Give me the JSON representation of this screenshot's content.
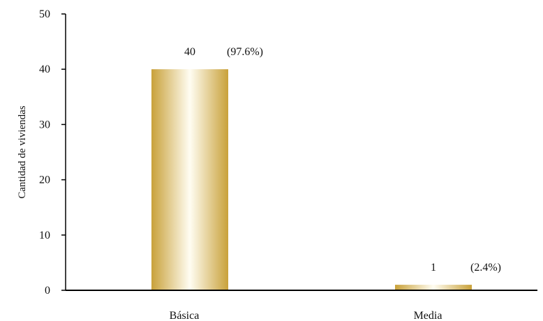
{
  "chart_data": {
    "type": "bar",
    "categories": [
      "Básica",
      "Media"
    ],
    "values": [
      40,
      1
    ],
    "value_labels": [
      "40",
      "1"
    ],
    "percent_labels": [
      "(97.6%)",
      "(2.4%)"
    ],
    "title": "",
    "xlabel": "",
    "ylabel": "Cantidad de viviendas",
    "ylim": [
      0,
      50
    ],
    "yticks": [
      0,
      10,
      20,
      30,
      40,
      50
    ],
    "grid": false,
    "legend": "none",
    "colors": {
      "bar_edge": "#c9a13a",
      "bar_highlight": "#fffdf2",
      "axis": "#000000",
      "text": "#111111"
    }
  }
}
